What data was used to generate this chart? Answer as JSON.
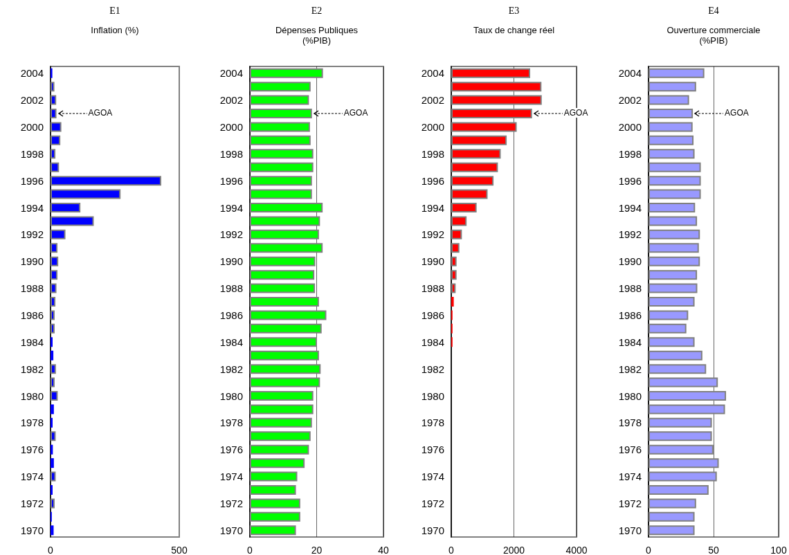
{
  "chart_data": [
    {
      "type": "bar",
      "orientation": "horizontal",
      "title": "E1",
      "subtitle": "Inflation (%)",
      "categories": [
        "2004",
        null,
        "2002",
        null,
        "2000",
        null,
        "1998",
        null,
        "1996",
        null,
        "1994",
        null,
        "1992",
        null,
        "1990",
        null,
        "1988",
        null,
        "1986",
        null,
        "1984",
        null,
        "1982",
        null,
        "1980",
        null,
        "1978",
        null,
        "1976",
        null,
        "1974",
        null,
        "1972",
        null,
        "1970"
      ],
      "values": [
        7,
        15,
        22,
        23,
        42,
        38,
        19,
        33,
        430,
        272,
        116,
        168,
        58,
        27,
        30,
        27,
        23,
        19,
        16,
        16,
        8,
        11,
        21,
        16,
        28,
        13,
        8,
        20,
        9,
        13,
        20,
        8,
        16,
        5,
        12
      ],
      "color": "#0000ff",
      "xlim": [
        0,
        500
      ],
      "xticks": [
        0,
        500
      ],
      "grid": false,
      "annotations": [
        {
          "text": "AGOA",
          "x": 23
        }
      ]
    },
    {
      "type": "bar",
      "orientation": "horizontal",
      "title": "E2",
      "subtitle": "Dépenses Publiques (%PIB)",
      "categories": [
        "2004",
        null,
        "2002",
        null,
        "2000",
        null,
        "1998",
        null,
        "1996",
        null,
        "1994",
        null,
        "1992",
        null,
        "1990",
        null,
        "1988",
        null,
        "1986",
        null,
        "1984",
        null,
        "1982",
        null,
        "1980",
        null,
        "1978",
        null,
        "1976",
        null,
        "1974",
        null,
        "1972",
        null,
        "1970"
      ],
      "values": [
        21.9,
        18.2,
        17.7,
        18.6,
        18.0,
        18.2,
        19.0,
        19.0,
        18.6,
        18.6,
        21.8,
        21.0,
        20.7,
        21.8,
        19.6,
        19.3,
        19.5,
        20.7,
        22.9,
        21.5,
        20.1,
        20.7,
        21.2,
        21.0,
        19.0,
        19.0,
        18.6,
        18.2,
        17.7,
        16.4,
        14.2,
        13.8,
        15.1,
        15.1,
        13.8
      ],
      "color": "#00ff00",
      "xlim": [
        0,
        40
      ],
      "xticks": [
        0,
        20,
        40
      ],
      "grid": "x",
      "annotations": [
        {
          "text": "AGOA",
          "x": 18.6
        }
      ]
    },
    {
      "type": "bar",
      "orientation": "horizontal",
      "title": "E3",
      "subtitle": "Taux de change réel",
      "categories": [
        "2004",
        null,
        "2002",
        null,
        "2000",
        null,
        "1998",
        null,
        "1996",
        null,
        "1994",
        null,
        "1992",
        null,
        "1990",
        null,
        "1988",
        null,
        "1986",
        null,
        "1984",
        null,
        "1982",
        null,
        "1980",
        null,
        "1978",
        null,
        "1976",
        null,
        "1974",
        null,
        "1972",
        null,
        "1970"
      ],
      "values": [
        2520,
        2880,
        2890,
        2580,
        2090,
        1770,
        1580,
        1490,
        1350,
        1160,
        810,
        490,
        340,
        260,
        170,
        170,
        140,
        80,
        40,
        40,
        40,
        null,
        null,
        null,
        null,
        null,
        null,
        null,
        null,
        null,
        null,
        null,
        null,
        null,
        null
      ],
      "color": "#ff0000",
      "xlim": [
        0,
        4000
      ],
      "xticks": [
        0,
        2000,
        4000
      ],
      "grid": "x",
      "annotations": [
        {
          "text": "AGOA",
          "x": 2580
        }
      ]
    },
    {
      "type": "bar",
      "orientation": "horizontal",
      "title": "E4",
      "subtitle": "Ouverture commerciale (%PIB)",
      "categories": [
        "2004",
        null,
        "2002",
        null,
        "2000",
        null,
        "1998",
        null,
        "1996",
        null,
        "1994",
        null,
        "1992",
        null,
        "1990",
        null,
        "1988",
        null,
        "1986",
        null,
        "1984",
        null,
        "1982",
        null,
        "1980",
        null,
        "1978",
        null,
        "1976",
        null,
        "1974",
        null,
        "1972",
        null,
        "1970"
      ],
      "values": [
        42.9,
        36.6,
        31.2,
        34.1,
        33.9,
        34.6,
        35.4,
        40.2,
        40.2,
        40.2,
        35.8,
        37.3,
        39.5,
        38.7,
        39.5,
        37.3,
        37.5,
        35.4,
        30.5,
        29.1,
        35.4,
        41.4,
        44.3,
        53.3,
        59.6,
        58.8,
        48.7,
        48.7,
        49.9,
        54.0,
        52.5,
        46.2,
        36.6,
        35.4,
        35.4
      ],
      "color": "#9999ff",
      "xlim": [
        0,
        100
      ],
      "xticks": [
        0,
        50,
        100
      ],
      "grid": "x",
      "annotations": [
        {
          "text": "AGOA",
          "x": 34.1
        }
      ]
    }
  ]
}
